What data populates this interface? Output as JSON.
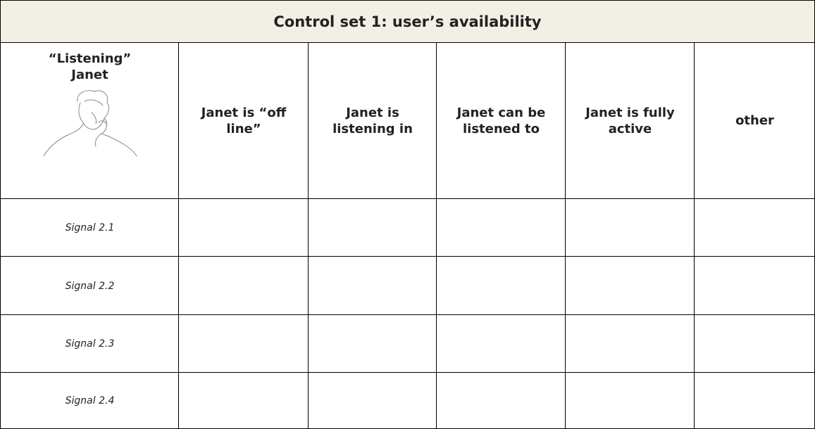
{
  "table": {
    "title": "Control set 1: user’s availability",
    "corner_lines": [
      "“Listening”",
      "Janet"
    ],
    "columns": [
      "Janet is “off line”",
      "Janet is listening in",
      "Janet can be listened to",
      "Janet is fully active",
      "other"
    ],
    "rows": [
      "Signal 2.1",
      "Signal 2.2",
      "Signal 2.3",
      "Signal 2.4"
    ]
  }
}
